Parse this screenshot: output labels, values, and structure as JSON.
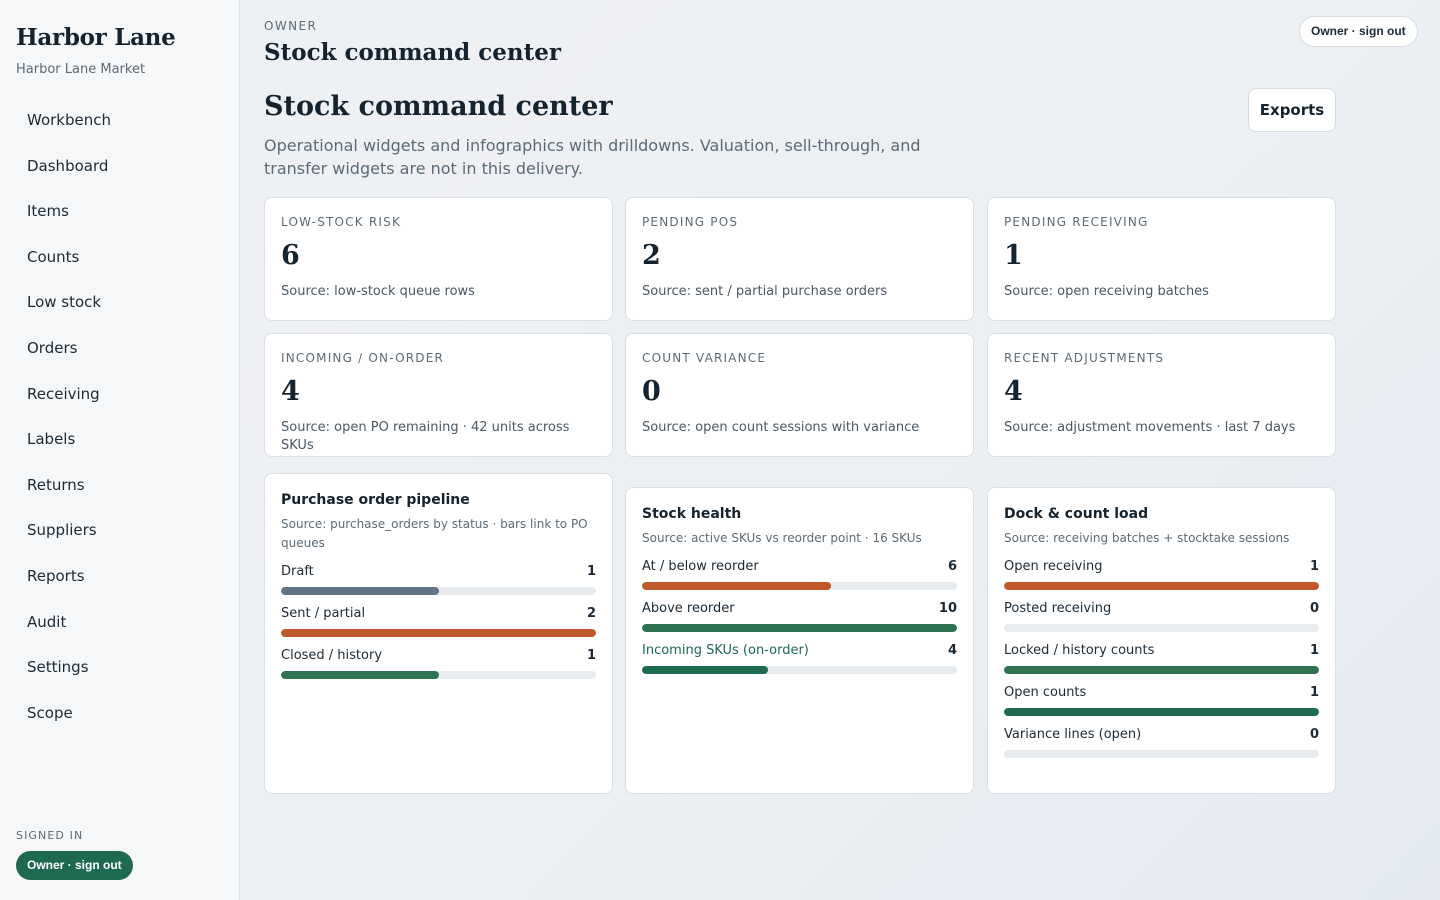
{
  "sidebar": {
    "brand": "Harbor Lane",
    "store": "Harbor Lane Market",
    "nav": [
      "Workbench",
      "Dashboard",
      "Items",
      "Counts",
      "Low stock",
      "Orders",
      "Receiving",
      "Labels",
      "Returns",
      "Suppliers",
      "Reports",
      "Audit",
      "Settings",
      "Scope"
    ],
    "signed_in_label": "SIGNED IN",
    "signed_in_pill": "Owner · sign out"
  },
  "header": {
    "role": "OWNER",
    "title": "Stock command center",
    "user_pill": "Owner · sign out"
  },
  "page": {
    "title": "Stock command center",
    "description": "Operational widgets and infographics with drilldowns. Valuation, sell-through, and transfer widgets are not in this delivery.",
    "exports_label": "Exports"
  },
  "kpis": [
    {
      "label": "LOW-STOCK RISK",
      "value": "6",
      "source": "Source: low-stock queue rows"
    },
    {
      "label": "PENDING POS",
      "value": "2",
      "source": "Source: sent / partial purchase orders"
    },
    {
      "label": "PENDING RECEIVING",
      "value": "1",
      "source": "Source: open receiving batches"
    },
    {
      "label": "INCOMING / ON-ORDER",
      "value": "4",
      "source": "Source: open PO remaining · 42 units across SKUs"
    },
    {
      "label": "COUNT VARIANCE",
      "value": "0",
      "source": "Source: open count sessions with variance"
    },
    {
      "label": "RECENT ADJUSTMENTS",
      "value": "4",
      "source": "Source: adjustment movements · last 7 days"
    }
  ],
  "widgets": [
    {
      "title": "Purchase order pipeline",
      "source": "Source: purchase_orders by status · bars link to PO queues",
      "rows": [
        {
          "label": "Draft",
          "value": "1",
          "fill": 0.5,
          "color": "#637486"
        },
        {
          "label": "Sent / partial",
          "value": "2",
          "fill": 1.0,
          "color": "#c0582b"
        },
        {
          "label": "Closed / history",
          "value": "1",
          "fill": 0.5,
          "color": "#2f7352"
        }
      ]
    },
    {
      "title": "Stock health",
      "source": "Source: active SKUs vs reorder point · 16 SKUs",
      "rows": [
        {
          "label": "At / below reorder",
          "value": "6",
          "fill": 0.6,
          "color": "#c0582b"
        },
        {
          "label": "Above reorder",
          "value": "10",
          "fill": 1.0,
          "color": "#2f7352"
        },
        {
          "label": "Incoming SKUs (on-order)",
          "value": "4",
          "fill": 0.4,
          "color": "#1d6a50",
          "link": true
        }
      ]
    },
    {
      "title": "Dock & count load",
      "source": "Source: receiving batches + stocktake sessions",
      "rows": [
        {
          "label": "Open receiving",
          "value": "1",
          "fill": 1.0,
          "color": "#c0582b"
        },
        {
          "label": "Posted receiving",
          "value": "0",
          "fill": 0.0,
          "color": "#2f7352"
        },
        {
          "label": "Locked / history counts",
          "value": "1",
          "fill": 1.0,
          "color": "#2f7352"
        },
        {
          "label": "Open counts",
          "value": "1",
          "fill": 1.0,
          "color": "#1d6a50"
        },
        {
          "label": "Variance lines (open)",
          "value": "0",
          "fill": 0.0,
          "color": "#c0582b"
        }
      ]
    }
  ]
}
